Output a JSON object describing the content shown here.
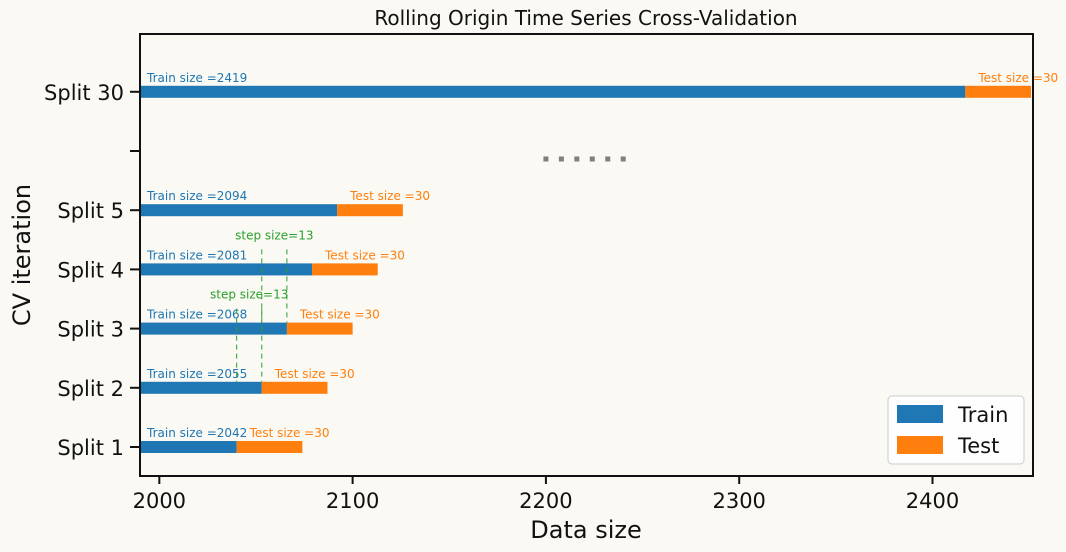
{
  "chart_data": {
    "type": "bar",
    "orientation": "horizontal",
    "title": "Rolling Origin Time Series Cross-Validation",
    "xlabel": "Data size",
    "ylabel": "CV iteration",
    "xlim": [
      1990,
      2452
    ],
    "x_ticks": [
      2000,
      2100,
      2200,
      2300,
      2400
    ],
    "y_ticks": [
      "Split 1",
      "Split 2",
      "Split 3",
      "Split 4",
      "Split 5",
      "",
      "Split 30"
    ],
    "ellipsis": "......",
    "colors": {
      "train": "#1f77b4",
      "test": "#ff7f0e",
      "step": "#2ca02c",
      "ellipsis": "#7f7f7f"
    },
    "series": [
      {
        "name": "Train"
      },
      {
        "name": "Test"
      }
    ],
    "splits": [
      {
        "label": "Split 1",
        "row": 0,
        "train_end": 2040,
        "test_end": 2074,
        "train_label": "Train size =2042",
        "test_label": "Test size =30"
      },
      {
        "label": "Split 2",
        "row": 1,
        "train_end": 2053,
        "test_end": 2087,
        "train_label": "Train size =2055",
        "test_label": "Test size =30"
      },
      {
        "label": "Split 3",
        "row": 2,
        "train_end": 2066,
        "test_end": 2100,
        "train_label": "Train size =2068",
        "test_label": "Test size =30"
      },
      {
        "label": "Split 4",
        "row": 3,
        "train_end": 2079,
        "test_end": 2113,
        "train_label": "Train size =2081",
        "test_label": "Test size =30"
      },
      {
        "label": "Split 5",
        "row": 4,
        "train_end": 2092,
        "test_end": 2126,
        "train_label": "Train size =2094",
        "test_label": "Test size =30"
      },
      {
        "label": "Split 30",
        "row": 6,
        "train_end": 2417,
        "test_end": 2451,
        "train_label": "Train size =2419",
        "test_label": "Test size =30"
      }
    ],
    "step_annotations": [
      {
        "label": "step size=13",
        "between_rows": [
          1,
          2
        ],
        "x_start": 2040,
        "x_end": 2053
      },
      {
        "label": "step size=13",
        "between_rows": [
          2,
          3
        ],
        "x_start": 2053,
        "x_end": 2066
      }
    ],
    "legend_position": "lower-right"
  }
}
